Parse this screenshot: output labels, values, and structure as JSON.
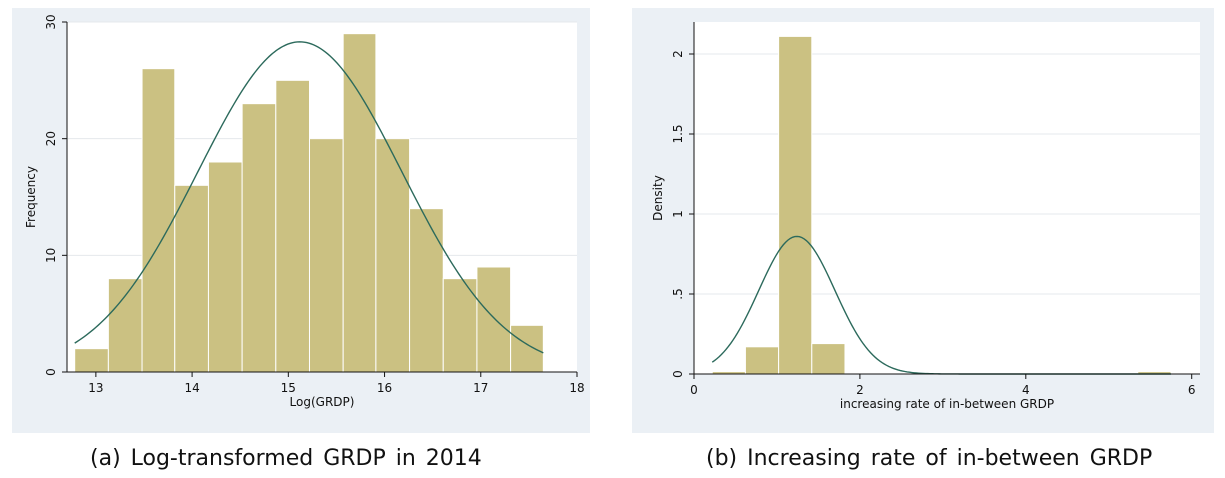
{
  "colors": {
    "panel_bg": "#ebf0f5",
    "plot_bg": "#ffffff",
    "bar_fill": "#cbc182",
    "bar_stroke": "#ffffff",
    "curve": "#2c6a5c",
    "grid": "#e4e8ec",
    "axis": "#111111"
  },
  "captions": {
    "a": "(a) Log-transformed GRDP in 2014",
    "b": "(b) Increasing rate of in-between GRDP"
  },
  "chart_data": [
    {
      "type": "bar",
      "subtype": "histogram",
      "xlabel": "Log(GRDP)",
      "ylabel": "Frequency",
      "xlim": [
        12.7,
        18.0
      ],
      "ylim": [
        0,
        30
      ],
      "xticks": [
        13,
        14,
        15,
        16,
        17,
        18
      ],
      "yticks": [
        0,
        10,
        20,
        30
      ],
      "ytick_orientation": "vertical",
      "grid": "horizontal",
      "bins": [
        {
          "x0": 12.78,
          "x1": 13.13,
          "value": 2
        },
        {
          "x0": 13.13,
          "x1": 13.48,
          "value": 8
        },
        {
          "x0": 13.48,
          "x1": 13.82,
          "value": 26
        },
        {
          "x0": 13.82,
          "x1": 14.17,
          "value": 16
        },
        {
          "x0": 14.17,
          "x1": 14.52,
          "value": 18
        },
        {
          "x0": 14.52,
          "x1": 14.87,
          "value": 23
        },
        {
          "x0": 14.87,
          "x1": 15.22,
          "value": 25
        },
        {
          "x0": 15.22,
          "x1": 15.57,
          "value": 20
        },
        {
          "x0": 15.57,
          "x1": 15.91,
          "value": 29
        },
        {
          "x0": 15.91,
          "x1": 16.26,
          "value": 20
        },
        {
          "x0": 16.26,
          "x1": 16.61,
          "value": 14
        },
        {
          "x0": 16.61,
          "x1": 16.96,
          "value": 8
        },
        {
          "x0": 16.96,
          "x1": 17.31,
          "value": 9
        },
        {
          "x0": 17.31,
          "x1": 17.65,
          "value": 4
        }
      ],
      "normal_curve": {
        "mean": 15.12,
        "sd": 1.06,
        "peak": 28.3,
        "x_range": [
          12.78,
          17.65
        ]
      }
    },
    {
      "type": "bar",
      "subtype": "histogram",
      "xlabel": "increasing rate of in-between GRDP",
      "ylabel": "Density",
      "xlim": [
        0,
        6.1
      ],
      "ylim": [
        0,
        2.2
      ],
      "xticks": [
        0,
        2,
        4,
        6
      ],
      "yticks": [
        0,
        0.5,
        1,
        1.5,
        2
      ],
      "ytick_labels": [
        "0",
        ".5",
        "1",
        "1.5",
        "2"
      ],
      "ytick_orientation": "vertical",
      "grid": "horizontal",
      "bins": [
        {
          "x0": 0.22,
          "x1": 0.62,
          "value": 0.015
        },
        {
          "x0": 0.62,
          "x1": 1.02,
          "value": 0.17
        },
        {
          "x0": 1.02,
          "x1": 1.42,
          "value": 2.11
        },
        {
          "x0": 1.42,
          "x1": 1.82,
          "value": 0.19
        },
        {
          "x0": 1.82,
          "x1": 2.22,
          "value": 0.003
        },
        {
          "x0": 5.35,
          "x1": 5.75,
          "value": 0.015
        }
      ],
      "normal_curve": {
        "mean": 1.24,
        "sd": 0.46,
        "peak": 0.86,
        "x_range": [
          0.22,
          5.75
        ]
      }
    }
  ]
}
